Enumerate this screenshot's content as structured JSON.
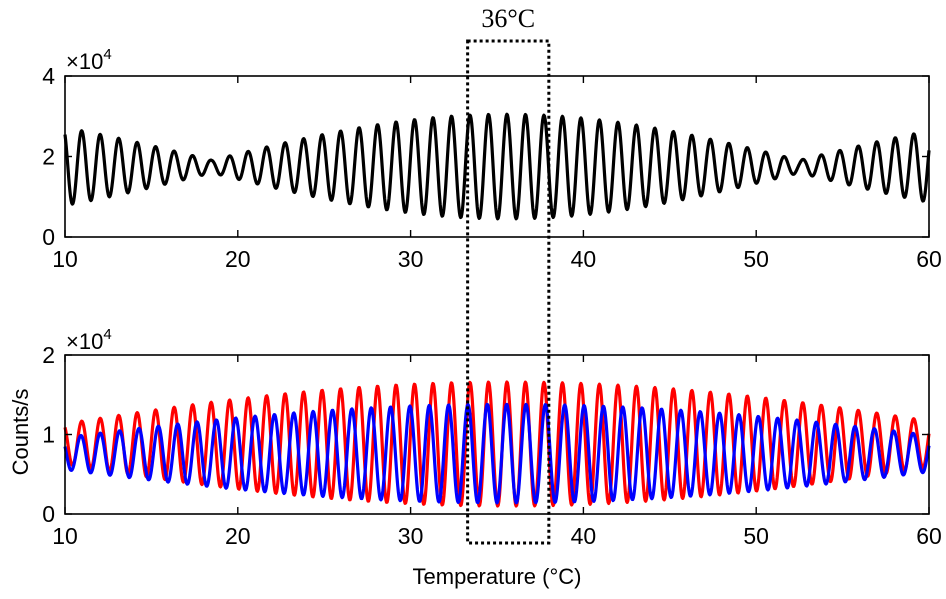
{
  "chart_data": [
    {
      "type": "line",
      "panel": "top",
      "x_range": [
        10,
        60
      ],
      "ylim": [
        0,
        4
      ],
      "y_multiplier_label": "×10",
      "y_multiplier_exponent": "4",
      "xticks": [
        "10",
        "20",
        "30",
        "40",
        "50",
        "60"
      ],
      "yticks": [
        "0",
        "2",
        "4"
      ],
      "ylabel": "",
      "xlabel": "",
      "grid": false,
      "series": [
        {
          "color": "#000000",
          "signal": {
            "baseline": 1.75,
            "envelope_amplitude": 1.3,
            "envelope_center": 35.5,
            "envelope_period": 34,
            "fringe_period": 1.07
          }
        }
      ]
    },
    {
      "type": "line",
      "panel": "bottom",
      "x_range": [
        10,
        60
      ],
      "ylim": [
        0,
        2
      ],
      "y_multiplier_label": "×10",
      "y_multiplier_exponent": "4",
      "xticks": [
        "10",
        "20",
        "30",
        "40",
        "50",
        "60"
      ],
      "yticks": [
        "0",
        "1",
        "2"
      ],
      "ylabel": "Counts/s",
      "xlabel": "Temperature (°C)",
      "grid": false,
      "series": [
        {
          "color": "#ff0000",
          "signal": {
            "baseline": 0.88,
            "envelope_amplitude": 0.78,
            "envelope_center": 35.5,
            "envelope_period": 60,
            "fringe_period": 1.07,
            "phase": 0.0
          }
        },
        {
          "color": "#0000ff",
          "signal": {
            "baseline": 0.76,
            "envelope_amplitude": 0.62,
            "envelope_center": 35.5,
            "envelope_period": 60,
            "fringe_period": 1.12,
            "phase": 3.14
          }
        }
      ]
    }
  ],
  "annotation": {
    "label": "36°C",
    "x_from": 33.3,
    "x_to": 38.0
  }
}
